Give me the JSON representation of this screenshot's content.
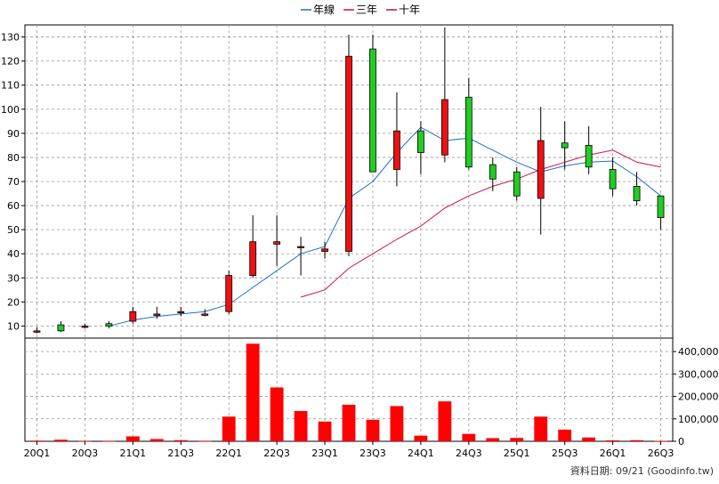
{
  "chart_data": [
    {
      "type": "candlestick",
      "legend": [
        {
          "label": "年線",
          "color": "#1e6fd0"
        },
        {
          "label": "三年",
          "color": "#d0104c"
        },
        {
          "label": "十年",
          "color": "#b0105a"
        }
      ],
      "legend_position": "top-center",
      "grid": true,
      "ylim": [
        5,
        135
      ],
      "yticks": [
        10,
        20,
        30,
        40,
        50,
        60,
        70,
        80,
        90,
        100,
        110,
        120,
        130
      ],
      "x_tick_labels": [
        "20Q1",
        "20Q3",
        "21Q1",
        "21Q3",
        "22Q1",
        "22Q3",
        "23Q1",
        "23Q3",
        "24Q1",
        "24Q3",
        "25Q1",
        "25Q3",
        "26Q1",
        "26Q3"
      ],
      "quarters": [
        "20Q1",
        "20Q2",
        "20Q3",
        "20Q4",
        "21Q1",
        "21Q2",
        "21Q3",
        "21Q4",
        "22Q1",
        "22Q2",
        "22Q3",
        "22Q4",
        "23Q1",
        "23Q2",
        "23Q3",
        "23Q4",
        "24Q1",
        "24Q2",
        "24Q3",
        "24Q4",
        "25Q1",
        "25Q2",
        "25Q3",
        "25Q4",
        "26Q1",
        "26Q2",
        "26Q3"
      ],
      "candles": [
        {
          "o": 8,
          "h": 9.5,
          "l": 7,
          "c": 8
        },
        {
          "o": 10.5,
          "h": 12,
          "l": 7.5,
          "c": 8
        },
        {
          "o": 10,
          "h": 11,
          "l": 9,
          "c": 10
        },
        {
          "o": 11,
          "h": 12,
          "l": 9,
          "c": 10
        },
        {
          "o": 12,
          "h": 18,
          "l": 11,
          "c": 16
        },
        {
          "o": 15,
          "h": 18,
          "l": 13,
          "c": 15
        },
        {
          "o": 16,
          "h": 18,
          "l": 14,
          "c": 16
        },
        {
          "o": 15,
          "h": 17,
          "l": 14,
          "c": 15
        },
        {
          "o": 16,
          "h": 33,
          "l": 15,
          "c": 31
        },
        {
          "o": 31,
          "h": 56,
          "l": 30,
          "c": 45
        },
        {
          "o": 44,
          "h": 56,
          "l": 35,
          "c": 45
        },
        {
          "o": 43,
          "h": 47,
          "l": 31,
          "c": 43
        },
        {
          "o": 41,
          "h": 45,
          "l": 38,
          "c": 42
        },
        {
          "o": 41,
          "h": 131,
          "l": 39,
          "c": 122
        },
        {
          "o": 125,
          "h": 131,
          "l": 74,
          "c": 74
        },
        {
          "o": 75,
          "h": 107,
          "l": 68,
          "c": 91
        },
        {
          "o": 91,
          "h": 95,
          "l": 73,
          "c": 82
        },
        {
          "o": 81,
          "h": 134,
          "l": 78,
          "c": 104
        },
        {
          "o": 105,
          "h": 113,
          "l": 75,
          "c": 76
        },
        {
          "o": 77,
          "h": 80,
          "l": 66,
          "c": 71
        },
        {
          "o": 74,
          "h": 76,
          "l": 62,
          "c": 64
        },
        {
          "o": 63,
          "h": 101,
          "l": 48,
          "c": 87
        },
        {
          "o": 86,
          "h": 95,
          "l": 75,
          "c": 84
        },
        {
          "o": 85,
          "h": 93,
          "l": 73,
          "c": 76
        },
        {
          "o": 75,
          "h": 80,
          "l": 64,
          "c": 67
        },
        {
          "o": 68,
          "h": 74,
          "l": 60,
          "c": 62
        },
        {
          "o": 64,
          "h": 64,
          "l": 50,
          "c": 55
        }
      ],
      "series": [
        {
          "name": "年線",
          "values": [
            null,
            null,
            null,
            10,
            12.5,
            14,
            15,
            16,
            19,
            26,
            33,
            40,
            43,
            63,
            70,
            82,
            92.5,
            87,
            88,
            83,
            78,
            74,
            76.5,
            78,
            78.5,
            72,
            64
          ]
        },
        {
          "name": "三年",
          "values": [
            null,
            null,
            null,
            null,
            null,
            null,
            null,
            null,
            null,
            null,
            null,
            22,
            25,
            34,
            40,
            46,
            51.5,
            59,
            64,
            68,
            71,
            75,
            78,
            81,
            83,
            78,
            76
          ]
        }
      ]
    },
    {
      "type": "bar",
      "title_hint": "volume",
      "ylim": [
        0,
        460000
      ],
      "yticks": [
        "0",
        "100,000",
        "200,000",
        "300,000",
        "400,000"
      ],
      "values": [
        3000,
        7000,
        1000,
        1000,
        22000,
        10000,
        5000,
        1000,
        110000,
        435000,
        240000,
        135000,
        88000,
        163000,
        96000,
        157000,
        25000,
        178000,
        33000,
        14000,
        15000,
        110000,
        52000,
        17000,
        4000,
        5000,
        2000
      ]
    }
  ],
  "footer": {
    "source": "資料日期: 09/21 (Goodinfo.tw)"
  }
}
